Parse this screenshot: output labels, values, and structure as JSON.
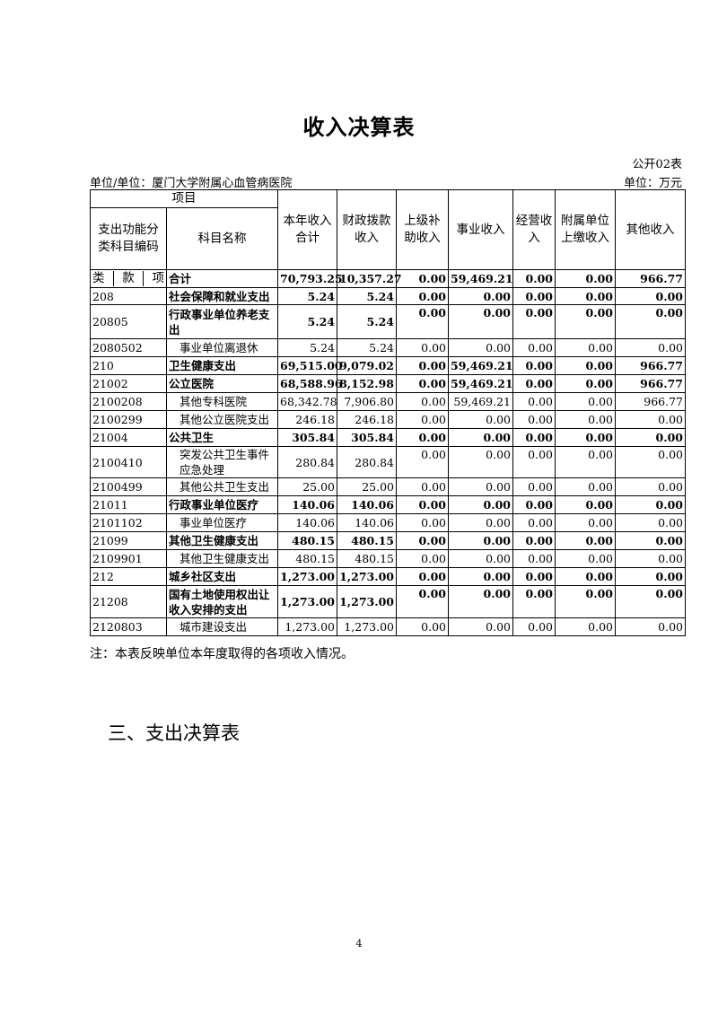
{
  "title": "收入决算表",
  "table_no": "公开02表",
  "unit_left": "单位/单位：厦门大学附属心血管病医院",
  "unit_right": "单位：万元",
  "headers": {
    "item": "项目",
    "code": "支出功能分类科目编码",
    "name": "科目名称",
    "cols": [
      "本年收入合计",
      "财政拨款收入",
      "上级补助收入",
      "事业收入",
      "经营收入",
      "附属单位上缴收入",
      "其他收入"
    ],
    "lei": "类",
    "kuan": "款",
    "xiang": "项"
  },
  "rows": [
    {
      "code": "",
      "name": "合计",
      "bold": true,
      "values": [
        "70,793.25",
        "10,357.27",
        "0.00",
        "59,469.21",
        "0.00",
        "0.00",
        "966.77"
      ]
    },
    {
      "code": "208",
      "name": "社会保障和就业支出",
      "bold": true,
      "values": [
        "5.24",
        "5.24",
        "0.00",
        "0.00",
        "0.00",
        "0.00",
        "0.00"
      ]
    },
    {
      "code": "20805",
      "name": "行政事业单位养老支出",
      "bold": true,
      "values": [
        "5.24",
        "5.24",
        "0.00",
        "0.00",
        "0.00",
        "0.00",
        "0.00"
      ]
    },
    {
      "code": "2080502",
      "name": "事业单位离退休",
      "bold": false,
      "values": [
        "5.24",
        "5.24",
        "0.00",
        "0.00",
        "0.00",
        "0.00",
        "0.00"
      ]
    },
    {
      "code": "210",
      "name": "卫生健康支出",
      "bold": true,
      "values": [
        "69,515.00",
        "9,079.02",
        "0.00",
        "59,469.21",
        "0.00",
        "0.00",
        "966.77"
      ]
    },
    {
      "code": "21002",
      "name": "公立医院",
      "bold": true,
      "values": [
        "68,588.96",
        "8,152.98",
        "0.00",
        "59,469.21",
        "0.00",
        "0.00",
        "966.77"
      ]
    },
    {
      "code": "2100208",
      "name": "其他专科医院",
      "bold": false,
      "values": [
        "68,342.78",
        "7,906.80",
        "0.00",
        "59,469.21",
        "0.00",
        "0.00",
        "966.77"
      ]
    },
    {
      "code": "2100299",
      "name": "其他公立医院支出",
      "bold": false,
      "values": [
        "246.18",
        "246.18",
        "0.00",
        "0.00",
        "0.00",
        "0.00",
        "0.00"
      ]
    },
    {
      "code": "21004",
      "name": "公共卫生",
      "bold": true,
      "values": [
        "305.84",
        "305.84",
        "0.00",
        "0.00",
        "0.00",
        "0.00",
        "0.00"
      ]
    },
    {
      "code": "2100410",
      "name": "突发公共卫生事件应急处理",
      "bold": false,
      "values": [
        "280.84",
        "280.84",
        "0.00",
        "0.00",
        "0.00",
        "0.00",
        "0.00"
      ]
    },
    {
      "code": "2100499",
      "name": "其他公共卫生支出",
      "bold": false,
      "values": [
        "25.00",
        "25.00",
        "0.00",
        "0.00",
        "0.00",
        "0.00",
        "0.00"
      ]
    },
    {
      "code": "21011",
      "name": "行政事业单位医疗",
      "bold": true,
      "values": [
        "140.06",
        "140.06",
        "0.00",
        "0.00",
        "0.00",
        "0.00",
        "0.00"
      ]
    },
    {
      "code": "2101102",
      "name": "事业单位医疗",
      "bold": false,
      "values": [
        "140.06",
        "140.06",
        "0.00",
        "0.00",
        "0.00",
        "0.00",
        "0.00"
      ]
    },
    {
      "code": "21099",
      "name": "其他卫生健康支出",
      "bold": true,
      "values": [
        "480.15",
        "480.15",
        "0.00",
        "0.00",
        "0.00",
        "0.00",
        "0.00"
      ]
    },
    {
      "code": "2109901",
      "name": "其他卫生健康支出",
      "bold": false,
      "values": [
        "480.15",
        "480.15",
        "0.00",
        "0.00",
        "0.00",
        "0.00",
        "0.00"
      ]
    },
    {
      "code": "212",
      "name": "城乡社区支出",
      "bold": true,
      "values": [
        "1,273.00",
        "1,273.00",
        "0.00",
        "0.00",
        "0.00",
        "0.00",
        "0.00"
      ]
    },
    {
      "code": "21208",
      "name": "国有土地使用权出让收入安排的支出",
      "bold": true,
      "values": [
        "1,273.00",
        "1,273.00",
        "0.00",
        "0.00",
        "0.00",
        "0.00",
        "0.00"
      ]
    },
    {
      "code": "2120803",
      "name": "城市建设支出",
      "bold": false,
      "values": [
        "1,273.00",
        "1,273.00",
        "0.00",
        "0.00",
        "0.00",
        "0.00",
        "0.00"
      ]
    }
  ],
  "note": "注：本表反映单位本年度取得的各项收入情况。",
  "section_heading": "三、支出决算表",
  "page_number": "4"
}
